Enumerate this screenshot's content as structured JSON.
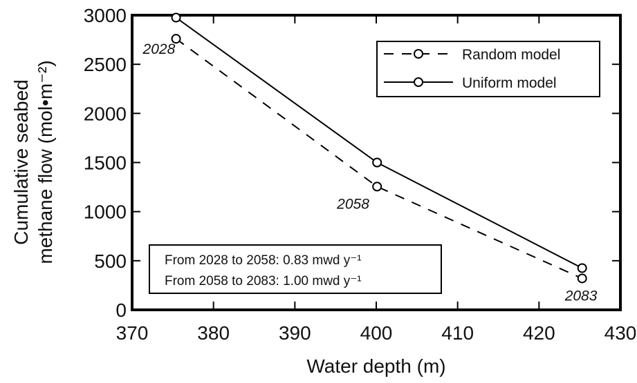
{
  "chart_data": {
    "type": "line",
    "xlabel": "Water depth (m)",
    "ylabel_line1": "Cumulative seabed",
    "ylabel_line2": "methane flow (mol•m⁻²)",
    "xlim": [
      370,
      430
    ],
    "ylim": [
      0,
      3000
    ],
    "xticks": [
      370,
      380,
      390,
      400,
      410,
      420,
      430
    ],
    "yticks": [
      0,
      500,
      1000,
      1500,
      2000,
      2500,
      3000
    ],
    "series": [
      {
        "name": "Random model",
        "style": "dashed",
        "x": [
          375.4,
          400.1,
          425.3
        ],
        "y": [
          2760,
          1255,
          320
        ]
      },
      {
        "name": "Uniform model",
        "style": "solid",
        "x": [
          375.4,
          400.1,
          425.3
        ],
        "y": [
          2975,
          1500,
          425
        ]
      }
    ],
    "point_labels": [
      {
        "text": "2028",
        "x": 375.4,
        "y": 2760
      },
      {
        "text": "2058",
        "x": 400.1,
        "y": 1255
      },
      {
        "text": "2083",
        "x": 425.3,
        "y": 320
      }
    ],
    "legend_position": "top-right",
    "annotation": [
      "From 2028 to 2058: 0.83 mwd y⁻¹",
      "From 2058 to 2083: 1.00 mwd y⁻¹"
    ]
  }
}
